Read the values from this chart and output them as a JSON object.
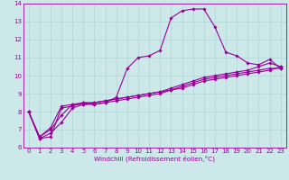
{
  "xlabel": "Windchill (Refroidissement éolien,°C)",
  "x": [
    0,
    1,
    2,
    3,
    4,
    5,
    6,
    7,
    8,
    9,
    10,
    11,
    12,
    13,
    14,
    15,
    16,
    17,
    18,
    19,
    20,
    21,
    22,
    23
  ],
  "line1": [
    8.0,
    6.5,
    6.6,
    8.2,
    8.3,
    8.5,
    8.4,
    8.5,
    8.8,
    10.4,
    11.0,
    11.1,
    11.4,
    13.2,
    13.6,
    13.7,
    13.7,
    12.7,
    11.3,
    11.1,
    10.7,
    10.6,
    10.9,
    10.4
  ],
  "line2": [
    8.0,
    6.6,
    7.0,
    7.8,
    8.4,
    8.4,
    8.4,
    8.5,
    8.6,
    8.7,
    8.8,
    8.9,
    9.0,
    9.2,
    9.4,
    9.6,
    9.8,
    9.9,
    10.0,
    10.1,
    10.2,
    10.3,
    10.4,
    10.4
  ],
  "line3": [
    8.0,
    6.6,
    7.1,
    8.3,
    8.4,
    8.5,
    8.5,
    8.6,
    8.7,
    8.8,
    8.9,
    9.0,
    9.1,
    9.3,
    9.5,
    9.7,
    9.9,
    10.0,
    10.1,
    10.2,
    10.3,
    10.5,
    10.7,
    10.5
  ],
  "line4": [
    8.0,
    6.5,
    6.8,
    7.4,
    8.2,
    8.4,
    8.5,
    8.6,
    8.7,
    8.8,
    8.9,
    9.0,
    9.1,
    9.2,
    9.3,
    9.5,
    9.7,
    9.8,
    9.9,
    10.0,
    10.1,
    10.2,
    10.3,
    10.5
  ],
  "line_color": "#990099",
  "bg_color": "#cce8e8",
  "grid_color": "#b0d4d4",
  "ylim": [
    6,
    14
  ],
  "yticks": [
    6,
    7,
    8,
    9,
    10,
    11,
    12,
    13,
    14
  ],
  "xticks": [
    0,
    1,
    2,
    3,
    4,
    5,
    6,
    7,
    8,
    9,
    10,
    11,
    12,
    13,
    14,
    15,
    16,
    17,
    18,
    19,
    20,
    21,
    22,
    23
  ],
  "marker": "D",
  "markersize": 1.8,
  "linewidth": 0.8,
  "tick_fontsize": 5.0,
  "xlabel_fontsize": 5.2
}
